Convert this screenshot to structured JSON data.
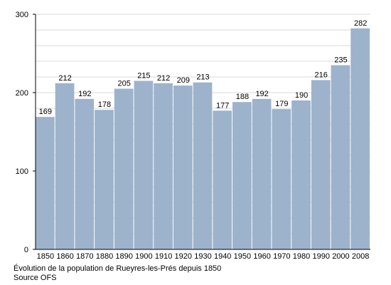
{
  "chart_data": {
    "type": "bar",
    "categories": [
      "1850",
      "1860",
      "1870",
      "1880",
      "1890",
      "1900",
      "1910",
      "1920",
      "1930",
      "1940",
      "1950",
      "1960",
      "1970",
      "1980",
      "1990",
      "2000",
      "2008"
    ],
    "values": [
      169,
      212,
      192,
      178,
      205,
      215,
      212,
      209,
      213,
      177,
      188,
      192,
      179,
      190,
      216,
      235,
      282
    ],
    "ylim": [
      0,
      300
    ],
    "yticks": [
      0,
      100,
      200,
      300
    ],
    "grid": true,
    "bar_color": "#9db3cc",
    "grid_color": "#cccccc",
    "caption": "Évolution de la population de Rueyres-les-Prés depuis 1850",
    "source": "Source OFS"
  }
}
